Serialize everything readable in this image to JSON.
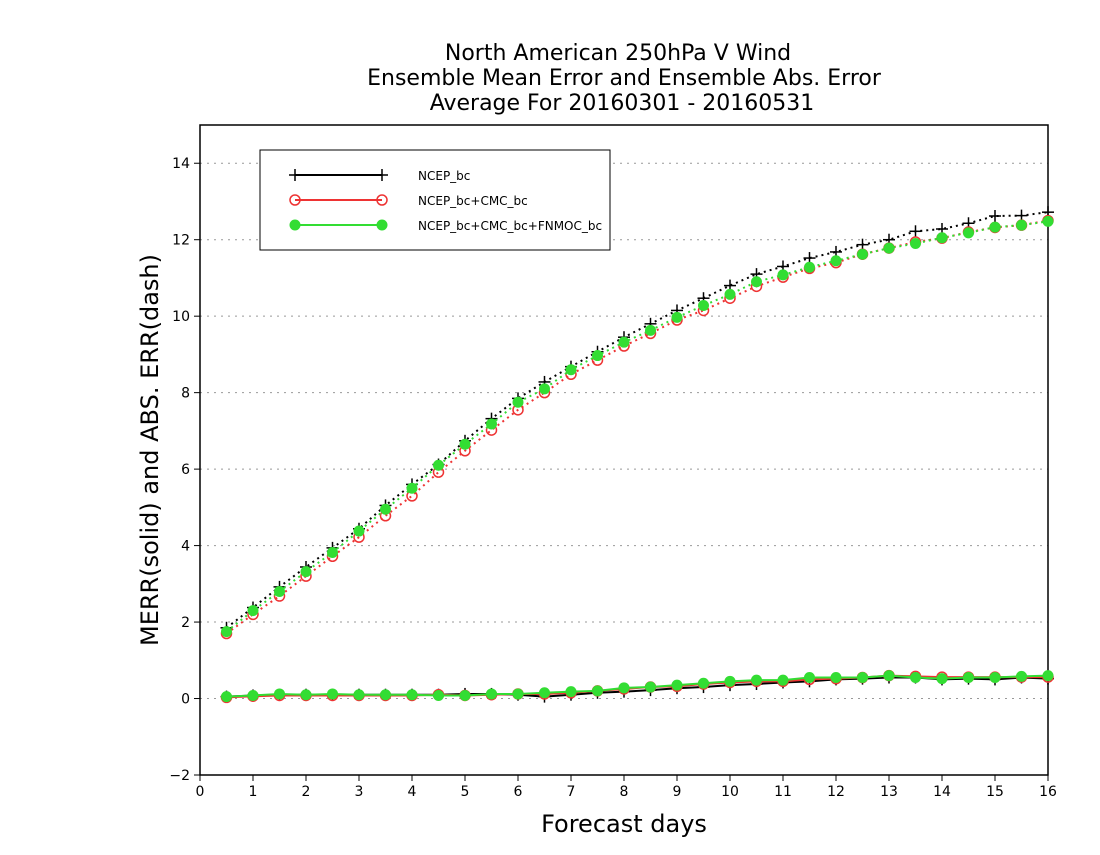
{
  "chart_data": {
    "type": "line",
    "title": [
      "North American 250hPa V Wind",
      "Ensemble Mean Error and Ensemble Abs. Error",
      "Average For 20160301 - 20160531"
    ],
    "xlabel": "Forecast days",
    "ylabel": "MERR(solid) and ABS. ERR(dash)",
    "xlim": [
      0,
      16
    ],
    "ylim": [
      -2,
      15
    ],
    "xticks": [
      0,
      1,
      2,
      3,
      4,
      5,
      6,
      7,
      8,
      9,
      10,
      11,
      12,
      13,
      14,
      15,
      16
    ],
    "yticks": [
      -2,
      0,
      2,
      4,
      6,
      8,
      10,
      12,
      14
    ],
    "grid": "horizontal dotted",
    "legend_position": "top-left",
    "x": [
      0.5,
      1,
      1.5,
      2,
      2.5,
      3,
      3.5,
      4,
      4.5,
      5,
      5.5,
      6,
      6.5,
      7,
      7.5,
      8,
      8.5,
      9,
      9.5,
      10,
      10.5,
      11,
      11.5,
      12,
      12.5,
      13,
      13.5,
      14,
      14.5,
      15,
      15.5,
      16
    ],
    "series": [
      {
        "name": "NCEP_bc",
        "color": "#000000",
        "marker": "plus",
        "merr": [
          0.05,
          0.08,
          0.1,
          0.1,
          0.1,
          0.1,
          0.1,
          0.1,
          0.1,
          0.12,
          0.12,
          0.1,
          0.05,
          0.1,
          0.15,
          0.18,
          0.22,
          0.27,
          0.3,
          0.35,
          0.38,
          0.42,
          0.45,
          0.5,
          0.52,
          0.55,
          0.55,
          0.5,
          0.52,
          0.5,
          0.55,
          0.52
        ],
        "abs_err": [
          1.85,
          2.38,
          2.92,
          3.44,
          3.94,
          4.44,
          5.05,
          5.6,
          6.12,
          6.74,
          7.32,
          7.85,
          8.28,
          8.68,
          9.07,
          9.45,
          9.8,
          10.15,
          10.47,
          10.8,
          11.1,
          11.3,
          11.52,
          11.68,
          11.87,
          12.0,
          12.22,
          12.28,
          12.43,
          12.62,
          12.63,
          12.72
        ]
      },
      {
        "name": "NCEP_bc+CMC_bc",
        "color": "#ee3333",
        "marker": "open-circle",
        "merr": [
          0.03,
          0.06,
          0.08,
          0.08,
          0.08,
          0.08,
          0.08,
          0.08,
          0.1,
          0.08,
          0.1,
          0.12,
          0.12,
          0.15,
          0.2,
          0.25,
          0.3,
          0.32,
          0.38,
          0.42,
          0.45,
          0.45,
          0.5,
          0.52,
          0.55,
          0.6,
          0.58,
          0.56,
          0.56,
          0.56,
          0.56,
          0.56
        ],
        "abs_err": [
          1.7,
          2.2,
          2.68,
          3.2,
          3.72,
          4.22,
          4.78,
          5.3,
          5.92,
          6.48,
          7.02,
          7.55,
          8.0,
          8.48,
          8.85,
          9.22,
          9.55,
          9.9,
          10.15,
          10.47,
          10.78,
          11.02,
          11.25,
          11.4,
          11.62,
          11.78,
          11.94,
          12.04,
          12.2,
          12.32,
          12.38,
          12.5
        ]
      },
      {
        "name": "NCEP_bc+CMC_bc+FNMOC_bc",
        "color": "#33dd33",
        "marker": "filled-circle",
        "merr": [
          0.05,
          0.08,
          0.12,
          0.1,
          0.12,
          0.1,
          0.1,
          0.1,
          0.08,
          0.08,
          0.12,
          0.12,
          0.15,
          0.18,
          0.2,
          0.28,
          0.3,
          0.35,
          0.4,
          0.45,
          0.48,
          0.48,
          0.55,
          0.55,
          0.55,
          0.6,
          0.55,
          0.52,
          0.55,
          0.55,
          0.58,
          0.6
        ],
        "abs_err": [
          1.75,
          2.3,
          2.8,
          3.32,
          3.82,
          4.38,
          4.95,
          5.5,
          6.1,
          6.65,
          7.18,
          7.75,
          8.1,
          8.6,
          8.97,
          9.32,
          9.63,
          9.97,
          10.28,
          10.57,
          10.9,
          11.08,
          11.28,
          11.45,
          11.62,
          11.78,
          11.9,
          12.05,
          12.18,
          12.33,
          12.38,
          12.48
        ]
      }
    ]
  }
}
